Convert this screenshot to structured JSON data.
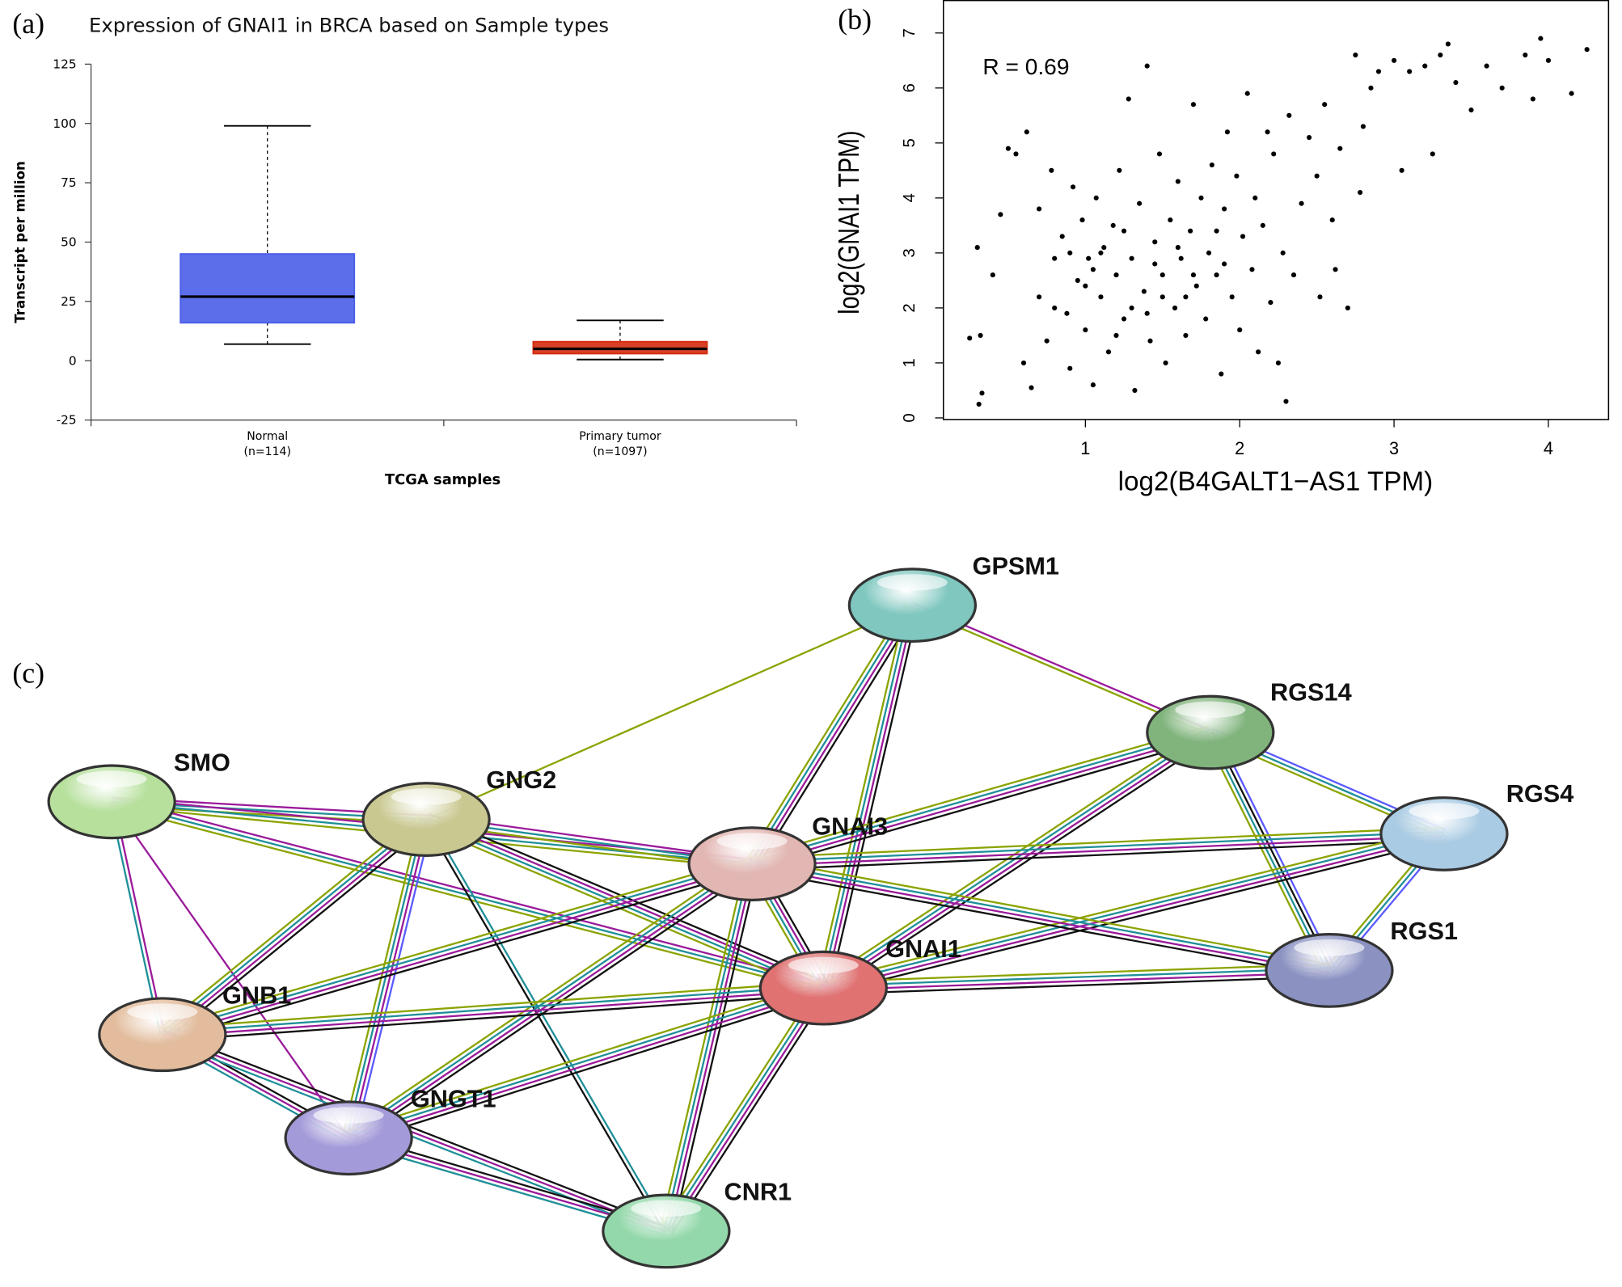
{
  "chart_data": [
    {
      "type": "box",
      "panel": "(a)",
      "title": "Expression of GNAI1 in BRCA based on Sample types",
      "y_label": "Transcript per million",
      "x_label": "TCGA samples",
      "categories": [
        "Normal",
        "Primary tumor"
      ],
      "counts": [
        "(n=114)",
        "(n=1097)"
      ],
      "min": [
        7,
        0.5
      ],
      "q1": [
        16,
        3
      ],
      "median": [
        27,
        5
      ],
      "q3": [
        45,
        8
      ],
      "max": [
        99,
        17
      ],
      "colors": [
        "#4a5ee8",
        "#d42a10"
      ],
      "ylim": [
        -25,
        125
      ],
      "yticks": [
        -25,
        0,
        25,
        50,
        75,
        100,
        125
      ]
    },
    {
      "type": "scatter",
      "panel": "(b)",
      "annotation": "R = 0.69",
      "x_label": "log2(B4GALT1−AS1 TPM)",
      "y_label": "log2(GNAI1 TPM)",
      "color": "#000000",
      "xlim": [
        0.08,
        4.39
      ],
      "ylim": [
        -0.02,
        7.6
      ],
      "xticks": [
        1,
        2,
        3,
        4
      ],
      "yticks": [
        0,
        1,
        2,
        3,
        4,
        5,
        6,
        7
      ],
      "x": [
        0.25,
        0.32,
        0.3,
        0.33,
        0.31,
        0.4,
        0.45,
        0.5,
        0.55,
        0.6,
        0.62,
        0.65,
        0.7,
        0.7,
        0.75,
        0.78,
        0.8,
        0.85,
        0.88,
        0.9,
        0.92,
        0.95,
        0.98,
        1.0,
        1.02,
        1.05,
        1.07,
        1.1,
        1.12,
        1.15,
        1.18,
        1.2,
        1.22,
        1.25,
        1.28,
        1.3,
        1.32,
        1.35,
        1.38,
        1.4,
        1.42,
        1.45,
        1.48,
        1.5,
        1.52,
        1.55,
        1.58,
        1.6,
        1.62,
        1.65,
        1.68,
        1.7,
        1.72,
        1.75,
        1.78,
        1.8,
        1.82,
        1.85,
        1.88,
        1.9,
        1.92,
        1.95,
        1.98,
        2.0,
        2.02,
        2.05,
        2.08,
        2.1,
        2.12,
        2.15,
        2.18,
        2.2,
        2.22,
        2.25,
        2.28,
        2.3,
        2.32,
        2.35,
        2.4,
        2.45,
        2.5,
        2.52,
        2.55,
        2.6,
        2.62,
        2.65,
        2.7,
        2.75,
        2.78,
        2.8,
        2.85,
        2.9,
        3.0,
        3.05,
        3.1,
        3.2,
        3.25,
        3.3,
        3.35,
        3.4,
        3.5,
        3.6,
        3.7,
        3.85,
        3.9,
        3.95,
        4.0,
        4.15,
        4.25,
        0.8,
        1.0,
        1.1,
        1.3,
        1.5,
        1.7,
        1.9,
        1.2,
        1.4,
        1.6,
        0.9,
        1.05,
        1.25,
        1.45,
        1.65,
        1.85
      ],
      "values": [
        1.45,
        1.5,
        3.1,
        0.45,
        0.25,
        2.6,
        3.7,
        4.9,
        4.8,
        1.0,
        5.2,
        0.55,
        3.8,
        2.2,
        1.4,
        4.5,
        2.9,
        3.3,
        1.9,
        0.9,
        4.2,
        2.5,
        3.6,
        1.6,
        2.9,
        0.6,
        4.0,
        2.2,
        3.1,
        1.2,
        3.5,
        2.6,
        4.5,
        1.8,
        5.8,
        2.9,
        0.5,
        3.9,
        2.3,
        6.4,
        1.4,
        3.2,
        4.8,
        2.6,
        1.0,
        3.6,
        2.0,
        4.3,
        2.9,
        1.5,
        3.4,
        5.7,
        2.4,
        4.0,
        1.8,
        3.0,
        4.6,
        2.6,
        0.8,
        3.8,
        5.2,
        2.2,
        4.4,
        1.6,
        3.3,
        5.9,
        2.7,
        4.0,
        1.2,
        3.5,
        5.2,
        2.1,
        4.8,
        1.0,
        3.0,
        0.3,
        5.5,
        2.6,
        3.9,
        5.1,
        4.4,
        2.2,
        5.7,
        3.6,
        2.7,
        4.9,
        2.0,
        6.6,
        4.1,
        5.3,
        6.0,
        6.3,
        6.5,
        4.5,
        6.3,
        6.4,
        4.8,
        6.6,
        6.8,
        6.1,
        5.6,
        6.4,
        6.0,
        6.6,
        5.8,
        6.9,
        6.5,
        5.9,
        6.7,
        2.0,
        2.4,
        3.0,
        2.0,
        2.2,
        2.6,
        2.8,
        1.5,
        1.9,
        3.1,
        3.0,
        2.7,
        3.4,
        2.8,
        2.2,
        3.4
      ]
    }
  ],
  "network": {
    "panel": "(c)",
    "nodes": [
      "GPSM1",
      "RGS14",
      "SMO",
      "GNG2",
      "GNAI3",
      "RGS4",
      "RGS1",
      "GNAI1",
      "GNB1",
      "GNGT1",
      "CNR1"
    ]
  }
}
